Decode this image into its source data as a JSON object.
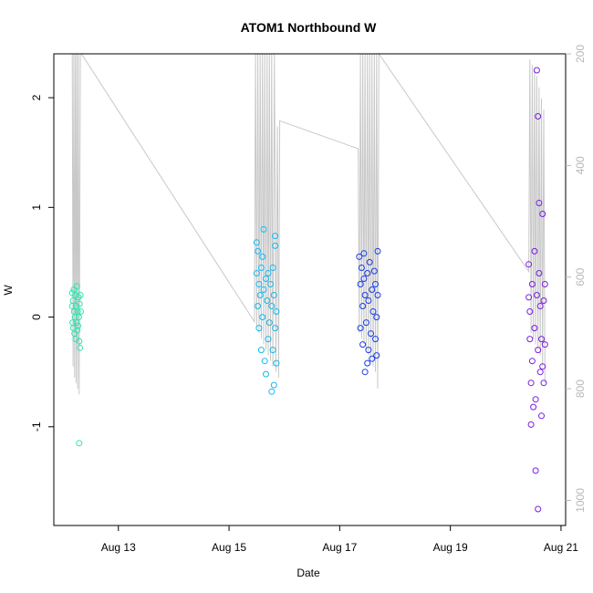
{
  "chart_data": {
    "type": "scatter",
    "title": "ATOM1 Northbound W",
    "xlabel": "Date",
    "ylabel": "W",
    "xlim": [
      "2023-08-11T20:00",
      "2023-08-21T02:00"
    ],
    "ylim": [
      -1.9,
      2.4
    ],
    "y2lim": [
      1045,
      200
    ],
    "x_ticks": [
      {
        "date": "2023-08-13T00:00",
        "label": "Aug 13"
      },
      {
        "date": "2023-08-15T00:00",
        "label": "Aug 15"
      },
      {
        "date": "2023-08-17T00:00",
        "label": "Aug 17"
      },
      {
        "date": "2023-08-19T00:00",
        "label": "Aug 19"
      },
      {
        "date": "2023-08-21T00:00",
        "label": "Aug 21"
      }
    ],
    "y_ticks": [
      {
        "value": -1,
        "label": "-1"
      },
      {
        "value": 0,
        "label": "0"
      },
      {
        "value": 1,
        "label": "1"
      },
      {
        "value": 2,
        "label": "2"
      }
    ],
    "y2_ticks": [
      {
        "value": 200,
        "label": "200"
      },
      {
        "value": 400,
        "label": "400"
      },
      {
        "value": 600,
        "label": "600"
      },
      {
        "value": 800,
        "label": "800"
      },
      {
        "value": 1000,
        "label": "1000"
      }
    ],
    "grid": false,
    "colors": {
      "axis": "#000000",
      "secondary_axis": "#b8b8b8",
      "depth_trace": "#c8c8c8",
      "deployment_1": "#2ee6b0",
      "deployment_2": "#18b8ee",
      "deployment_3": "#1a3de8",
      "deployment_4": "#7a1ee0"
    },
    "depth_trace": [
      [
        "2023-08-12T04:00",
        200
      ],
      [
        "2023-08-12T04:20",
        760
      ],
      [
        "2023-08-12T04:40",
        200
      ],
      [
        "2023-08-12T05:00",
        780
      ],
      [
        "2023-08-12T05:20",
        200
      ],
      [
        "2023-08-12T05:40",
        790
      ],
      [
        "2023-08-12T06:00",
        200
      ],
      [
        "2023-08-12T06:20",
        800
      ],
      [
        "2023-08-12T06:40",
        200
      ],
      [
        "2023-08-12T07:00",
        810
      ],
      [
        "2023-08-12T07:30",
        200
      ],
      [
        "2023-08-12T08:00",
        200
      ],
      [
        "2023-08-15T11:00",
        680
      ],
      [
        "2023-08-15T11:30",
        200
      ],
      [
        "2023-08-15T12:00",
        690
      ],
      [
        "2023-08-15T12:30",
        200
      ],
      [
        "2023-08-15T13:00",
        700
      ],
      [
        "2023-08-15T13:30",
        200
      ],
      [
        "2023-08-15T14:00",
        710
      ],
      [
        "2023-08-15T14:30",
        200
      ],
      [
        "2023-08-15T15:00",
        720
      ],
      [
        "2023-08-15T15:30",
        200
      ],
      [
        "2023-08-15T16:00",
        730
      ],
      [
        "2023-08-15T16:30",
        200
      ],
      [
        "2023-08-15T17:00",
        740
      ],
      [
        "2023-08-15T17:30",
        200
      ],
      [
        "2023-08-15T18:00",
        750
      ],
      [
        "2023-08-15T18:30",
        200
      ],
      [
        "2023-08-15T19:00",
        760
      ],
      [
        "2023-08-15T19:40",
        200
      ],
      [
        "2023-08-15T20:20",
        770
      ],
      [
        "2023-08-15T21:00",
        330
      ],
      [
        "2023-08-15T21:30",
        780
      ],
      [
        "2023-08-15T22:00",
        320
      ],
      [
        "2023-08-17T08:00",
        370
      ],
      [
        "2023-08-17T08:30",
        700
      ],
      [
        "2023-08-17T09:00",
        200
      ],
      [
        "2023-08-17T09:30",
        710
      ],
      [
        "2023-08-17T10:00",
        200
      ],
      [
        "2023-08-17T10:30",
        720
      ],
      [
        "2023-08-17T11:00",
        200
      ],
      [
        "2023-08-17T11:30",
        730
      ],
      [
        "2023-08-17T12:00",
        200
      ],
      [
        "2023-08-17T12:30",
        740
      ],
      [
        "2023-08-17T13:00",
        200
      ],
      [
        "2023-08-17T13:30",
        750
      ],
      [
        "2023-08-17T14:00",
        200
      ],
      [
        "2023-08-17T14:30",
        760
      ],
      [
        "2023-08-17T15:00",
        200
      ],
      [
        "2023-08-17T15:30",
        770
      ],
      [
        "2023-08-17T16:00",
        200
      ],
      [
        "2023-08-17T16:30",
        800
      ],
      [
        "2023-08-17T17:00",
        200
      ],
      [
        "2023-08-20T10:00",
        590
      ],
      [
        "2023-08-20T10:30",
        210
      ],
      [
        "2023-08-20T11:00",
        700
      ],
      [
        "2023-08-20T11:30",
        220
      ],
      [
        "2023-08-20T12:00",
        710
      ],
      [
        "2023-08-20T12:30",
        230
      ],
      [
        "2023-08-20T13:00",
        720
      ],
      [
        "2023-08-20T13:30",
        240
      ],
      [
        "2023-08-20T14:00",
        730
      ],
      [
        "2023-08-20T14:30",
        260
      ],
      [
        "2023-08-20T15:00",
        740
      ],
      [
        "2023-08-20T15:30",
        280
      ],
      [
        "2023-08-20T16:00",
        760
      ],
      [
        "2023-08-20T16:30",
        300
      ],
      [
        "2023-08-20T17:00",
        790
      ]
    ],
    "series": [
      {
        "color_key": "deployment_1",
        "points": [
          [
            "2023-08-12T04:00",
            0.22
          ],
          [
            "2023-08-12T04:00",
            0.1
          ],
          [
            "2023-08-12T04:10",
            -0.05
          ],
          [
            "2023-08-12T04:20",
            0.15
          ],
          [
            "2023-08-12T04:30",
            -0.1
          ],
          [
            "2023-08-12T04:40",
            0.25
          ],
          [
            "2023-08-12T04:50",
            0.05
          ],
          [
            "2023-08-12T05:00",
            -0.15
          ],
          [
            "2023-08-12T05:10",
            0.0
          ],
          [
            "2023-08-12T05:20",
            0.2
          ],
          [
            "2023-08-12T05:30",
            -0.2
          ],
          [
            "2023-08-12T05:40",
            0.1
          ],
          [
            "2023-08-12T05:50",
            -0.05
          ],
          [
            "2023-08-12T06:00",
            0.28
          ],
          [
            "2023-08-12T06:10",
            -0.12
          ],
          [
            "2023-08-12T06:20",
            0.05
          ],
          [
            "2023-08-12T06:30",
            -0.08
          ],
          [
            "2023-08-12T06:40",
            0.18
          ],
          [
            "2023-08-12T06:50",
            0.0
          ],
          [
            "2023-08-12T07:00",
            -0.22
          ],
          [
            "2023-08-12T07:10",
            0.12
          ],
          [
            "2023-08-12T07:20",
            -0.28
          ],
          [
            "2023-08-12T07:30",
            0.2
          ],
          [
            "2023-08-12T07:40",
            0.05
          ],
          [
            "2023-08-12T07:00",
            -1.15
          ]
        ]
      },
      {
        "color_key": "deployment_2",
        "points": [
          [
            "2023-08-15T12:00",
            0.68
          ],
          [
            "2023-08-15T12:00",
            0.4
          ],
          [
            "2023-08-15T12:30",
            0.1
          ],
          [
            "2023-08-15T12:30",
            0.6
          ],
          [
            "2023-08-15T13:00",
            0.3
          ],
          [
            "2023-08-15T13:00",
            -0.1
          ],
          [
            "2023-08-15T13:30",
            0.2
          ],
          [
            "2023-08-15T14:00",
            0.45
          ],
          [
            "2023-08-15T14:00",
            -0.3
          ],
          [
            "2023-08-15T14:30",
            0.0
          ],
          [
            "2023-08-15T15:00",
            0.8
          ],
          [
            "2023-08-15T15:00",
            0.25
          ],
          [
            "2023-08-15T15:30",
            -0.4
          ],
          [
            "2023-08-15T16:00",
            0.35
          ],
          [
            "2023-08-15T16:00",
            -0.52
          ],
          [
            "2023-08-15T16:30",
            0.15
          ],
          [
            "2023-08-15T17:00",
            -0.2
          ],
          [
            "2023-08-15T17:00",
            0.4
          ],
          [
            "2023-08-15T17:30",
            -0.05
          ],
          [
            "2023-08-15T18:00",
            0.3
          ],
          [
            "2023-08-15T18:30",
            -0.68
          ],
          [
            "2023-08-15T18:30",
            0.1
          ],
          [
            "2023-08-15T19:00",
            -0.3
          ],
          [
            "2023-08-15T19:00",
            0.45
          ],
          [
            "2023-08-15T19:30",
            0.2
          ],
          [
            "2023-08-15T19:30",
            -0.62
          ],
          [
            "2023-08-15T20:00",
            0.74
          ],
          [
            "2023-08-15T20:00",
            -0.1
          ],
          [
            "2023-08-15T20:00",
            0.65
          ],
          [
            "2023-08-15T20:30",
            -0.42
          ],
          [
            "2023-08-15T20:30",
            0.05
          ],
          [
            "2023-08-15T14:30",
            0.55
          ]
        ]
      },
      {
        "color_key": "deployment_3",
        "points": [
          [
            "2023-08-17T08:30",
            0.55
          ],
          [
            "2023-08-17T09:00",
            0.3
          ],
          [
            "2023-08-17T09:00",
            -0.1
          ],
          [
            "2023-08-17T09:30",
            0.45
          ],
          [
            "2023-08-17T10:00",
            0.1
          ],
          [
            "2023-08-17T10:00",
            -0.25
          ],
          [
            "2023-08-17T10:30",
            0.35
          ],
          [
            "2023-08-17T11:00",
            -0.5
          ],
          [
            "2023-08-17T11:00",
            0.2
          ],
          [
            "2023-08-17T11:30",
            -0.05
          ],
          [
            "2023-08-17T12:00",
            0.4
          ],
          [
            "2023-08-17T12:30",
            -0.3
          ],
          [
            "2023-08-17T12:30",
            0.15
          ],
          [
            "2023-08-17T13:00",
            0.5
          ],
          [
            "2023-08-17T13:30",
            -0.15
          ],
          [
            "2023-08-17T14:00",
            0.25
          ],
          [
            "2023-08-17T14:00",
            -0.38
          ],
          [
            "2023-08-17T14:30",
            0.05
          ],
          [
            "2023-08-17T15:00",
            0.42
          ],
          [
            "2023-08-17T15:30",
            -0.2
          ],
          [
            "2023-08-17T15:30",
            0.3
          ],
          [
            "2023-08-17T16:00",
            0.0
          ],
          [
            "2023-08-17T16:00",
            -0.35
          ],
          [
            "2023-08-17T16:30",
            0.6
          ],
          [
            "2023-08-17T16:30",
            0.2
          ],
          [
            "2023-08-17T10:30",
            0.58
          ],
          [
            "2023-08-17T12:00",
            -0.42
          ]
        ]
      },
      {
        "color_key": "deployment_4",
        "points": [
          [
            "2023-08-20T10:00",
            0.48
          ],
          [
            "2023-08-20T10:00",
            0.18
          ],
          [
            "2023-08-20T10:30",
            -0.2
          ],
          [
            "2023-08-20T10:30",
            0.05
          ],
          [
            "2023-08-20T11:00",
            -0.6
          ],
          [
            "2023-08-20T11:00",
            -0.98
          ],
          [
            "2023-08-20T11:30",
            0.3
          ],
          [
            "2023-08-20T11:30",
            -0.4
          ],
          [
            "2023-08-20T12:00",
            -0.82
          ],
          [
            "2023-08-20T12:30",
            0.6
          ],
          [
            "2023-08-20T12:30",
            -0.1
          ],
          [
            "2023-08-20T13:00",
            -0.75
          ],
          [
            "2023-08-20T13:00",
            -1.4
          ],
          [
            "2023-08-20T13:30",
            2.25
          ],
          [
            "2023-08-20T13:30",
            0.2
          ],
          [
            "2023-08-20T14:00",
            1.83
          ],
          [
            "2023-08-20T14:00",
            -0.3
          ],
          [
            "2023-08-20T14:00",
            -1.75
          ],
          [
            "2023-08-20T14:30",
            1.04
          ],
          [
            "2023-08-20T14:30",
            0.4
          ],
          [
            "2023-08-20T15:00",
            -0.5
          ],
          [
            "2023-08-20T15:00",
            0.1
          ],
          [
            "2023-08-20T15:30",
            -0.9
          ],
          [
            "2023-08-20T15:30",
            -0.2
          ],
          [
            "2023-08-20T16:00",
            0.94
          ],
          [
            "2023-08-20T16:00",
            -0.45
          ],
          [
            "2023-08-20T16:30",
            0.15
          ],
          [
            "2023-08-20T16:30",
            -0.6
          ],
          [
            "2023-08-20T17:00",
            -0.25
          ],
          [
            "2023-08-20T17:00",
            0.3
          ]
        ]
      }
    ]
  }
}
